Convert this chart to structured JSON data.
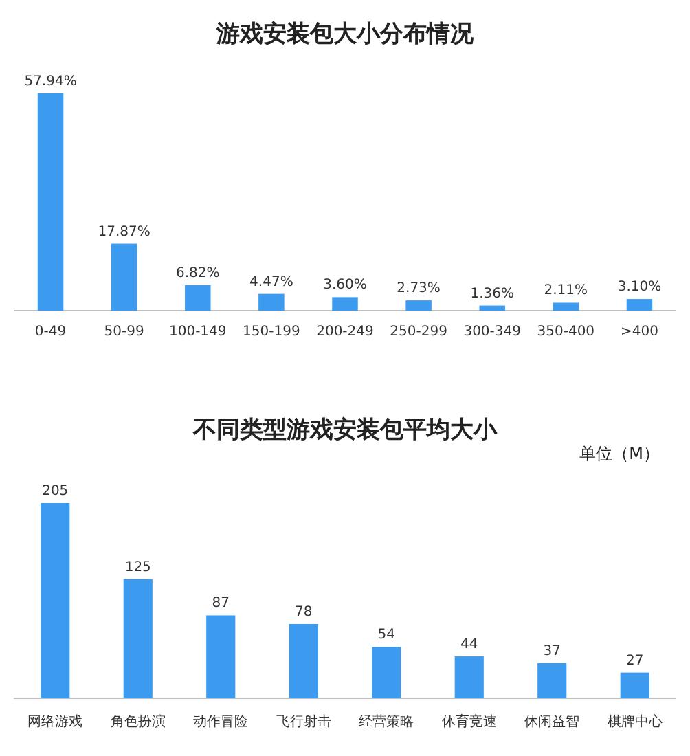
{
  "chart_data": [
    {
      "type": "bar",
      "title": "游戏安装包大小分布情况",
      "categories": [
        "0-49",
        "50-99",
        "100-149",
        "150-199",
        "200-249",
        "250-299",
        "300-349",
        "350-400",
        ">400"
      ],
      "values": [
        57.94,
        17.87,
        6.82,
        4.47,
        3.6,
        2.73,
        1.36,
        2.11,
        3.1
      ],
      "value_labels": [
        "57.94%",
        "17.87%",
        "6.82%",
        "4.47%",
        "3.60%",
        "2.73%",
        "1.36%",
        "2.11%",
        "3.10%"
      ],
      "color": "#3d9bef"
    },
    {
      "type": "bar",
      "title": "不同类型游戏安装包平均大小",
      "annotations": [
        "单位（M）"
      ],
      "categories": [
        "网络游戏",
        "角色扮演",
        "动作冒险",
        "飞行射击",
        "经营策略",
        "体育竞速",
        "休闲益智",
        "棋牌中心"
      ],
      "values": [
        205,
        125,
        87,
        78,
        54,
        44,
        37,
        27
      ],
      "data_labels": true,
      "color": "#3d9bef"
    }
  ]
}
